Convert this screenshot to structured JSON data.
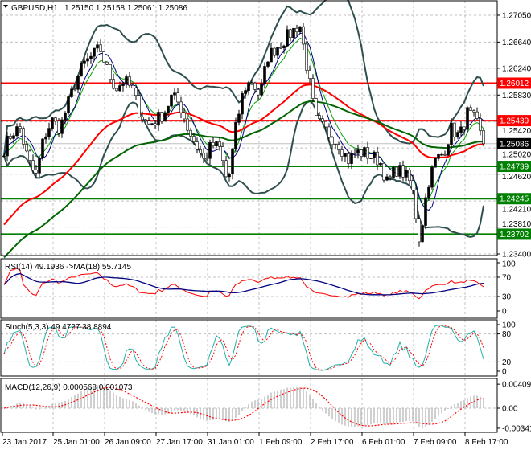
{
  "header": {
    "symbol": "GBPUSD,H1",
    "ohlc": "1.25150 1.25158 1.25061 1.25086"
  },
  "colors": {
    "support": "#008000",
    "resistance": "#ff0000",
    "bands": "#2f4f4f",
    "ma_fast": "#ff0000",
    "ma_slow": "#006400",
    "rsi": "#ff0000",
    "rsi_ma": "#000080",
    "stoch_main": "#20b2aa",
    "stoch_signal": "#ff0000",
    "macd_hist": "#c0c0c0",
    "macd_signal": "#ff0000"
  },
  "chart_data": [
    {
      "type": "candlestick",
      "title": "GBPUSD,H1",
      "ylim": [
        1.234,
        1.2725
      ],
      "y_ticks": [
        "1.27050",
        "1.26640",
        "1.26240",
        "1.25830",
        "1.25420",
        "1.25020",
        "1.24620",
        "1.24210",
        "1.23810",
        "1.23400"
      ],
      "x_ticks": [
        "23 Jan 2017",
        "25 Jan 01:00",
        "26 Jan 09:00",
        "27 Jan 17:00",
        "31 Jan 01:00",
        "1 Feb 09:00",
        "2 Feb 17:00",
        "6 Feb 01:00",
        "7 Feb 09:00",
        "8 Feb 17:00"
      ],
      "approx_close_path": [
        1.2501,
        1.2526,
        1.2532,
        1.2483,
        1.2458,
        1.2519,
        1.2544,
        1.2532,
        1.2569,
        1.2605,
        1.263,
        1.2642,
        1.2655,
        1.2618,
        1.2593,
        1.2605,
        1.2593,
        1.2556,
        1.2538,
        1.2544,
        1.2556,
        1.2581,
        1.2569,
        1.2532,
        1.2507,
        1.2483,
        1.2507,
        1.2501,
        1.2446,
        1.2532,
        1.2593,
        1.2605,
        1.2581,
        1.2642,
        1.2655,
        1.2667,
        1.2679,
        1.2692,
        1.2618,
        1.2544,
        1.2532,
        1.2519,
        1.2507,
        1.2483,
        1.2495,
        1.2495,
        1.2489,
        1.2483,
        1.2446,
        1.247,
        1.2464,
        1.2446,
        1.236,
        1.2446,
        1.2483,
        1.2495,
        1.2532,
        1.2519,
        1.2556,
        1.2544,
        1.25086
      ],
      "levels": [
        {
          "value": "1.26012",
          "kind": "resistance"
        },
        {
          "value": "1.25439",
          "kind": "resistance"
        },
        {
          "value": "1.24739",
          "kind": "support"
        },
        {
          "value": "1.24245",
          "kind": "support"
        },
        {
          "value": "1.23702",
          "kind": "support"
        }
      ],
      "current_price": "1.25086",
      "grid": true
    },
    {
      "type": "line",
      "label": "RSI(14) 49.1936  ->MA(18) 55.7145",
      "ylim": [
        0,
        100
      ],
      "y_ticks": [
        "100",
        "70",
        "30",
        "0"
      ]
    },
    {
      "type": "line",
      "label": "Stoch(5,3,3) 49.4727 38.8894",
      "ylim": [
        0,
        100
      ],
      "y_ticks": [
        "100",
        "80",
        "20",
        "0"
      ]
    },
    {
      "type": "bar",
      "label": "MACD(12,26,9) 0.000568 0.001073",
      "ylim": [
        -0.003415,
        0.00409
      ],
      "y_ticks": [
        "0.00409",
        "0.00",
        "-0.003415"
      ]
    }
  ]
}
